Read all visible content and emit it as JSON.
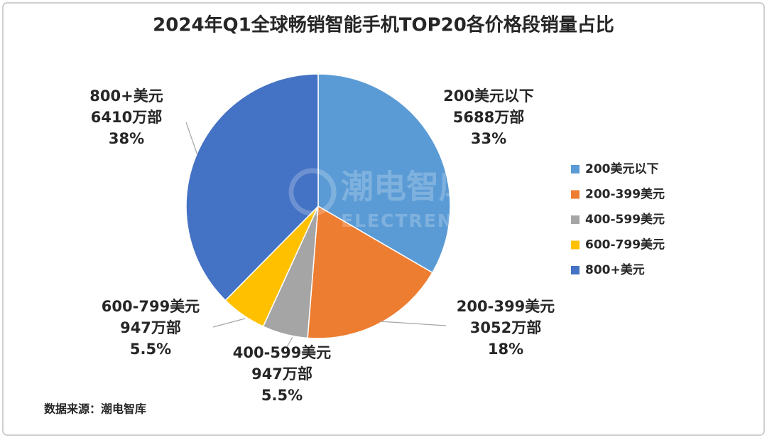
{
  "chart_data": {
    "type": "pie",
    "title": "2024年Q1全球畅销智能手机TOP20各价格段销量占比",
    "categories": [
      "200美元以下",
      "200-399美元",
      "400-599美元",
      "600-799美元",
      "800+美元"
    ],
    "values": [
      5688,
      3052,
      947,
      947,
      6410
    ],
    "value_labels": [
      "5688万部",
      "3052万部",
      "947万部",
      "947万部",
      "6410万部"
    ],
    "percentages": [
      "33%",
      "18%",
      "5.5%",
      "5.5%",
      "38%"
    ],
    "colors": [
      "#5b9bd5",
      "#ed7d31",
      "#a5a5a5",
      "#ffc000",
      "#4472c4"
    ],
    "legend": "right",
    "watermark": "潮电智库",
    "watermark_sub": "ELECTREND.NET",
    "source": "数据来源：潮电智库"
  }
}
